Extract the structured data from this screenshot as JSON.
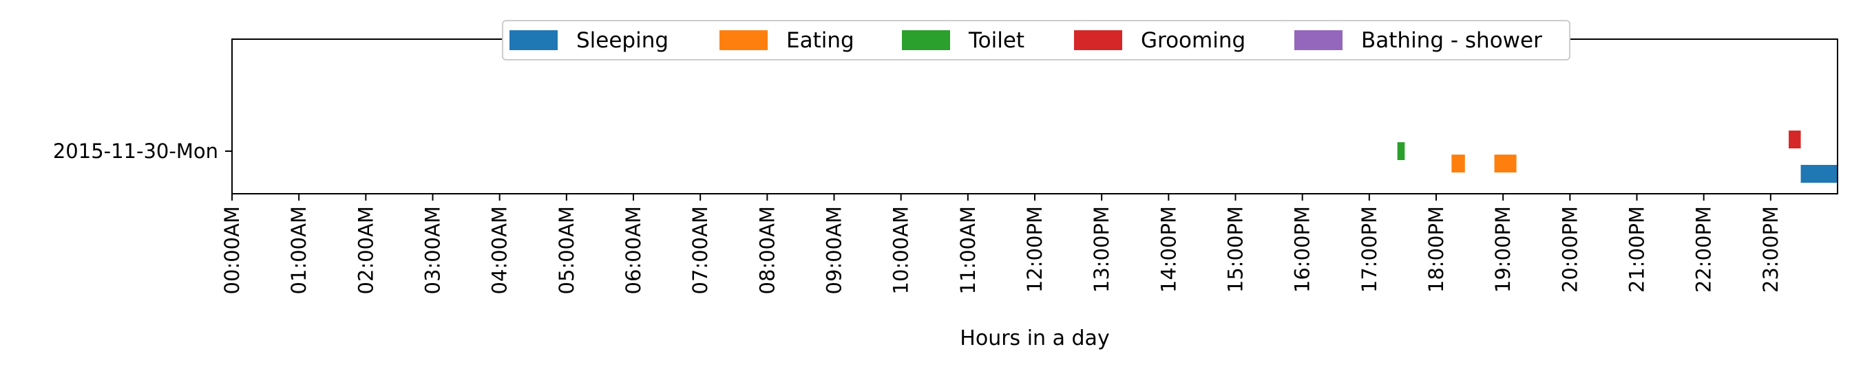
{
  "chart_data": {
    "type": "timeline",
    "xlabel": "Hours in a day",
    "xlim": [
      0,
      24
    ],
    "x_tick_labels": [
      "00:00AM",
      "01:00AM",
      "02:00AM",
      "03:00AM",
      "04:00AM",
      "05:00AM",
      "06:00AM",
      "07:00AM",
      "08:00AM",
      "09:00AM",
      "10:00AM",
      "11:00AM",
      "12:00PM",
      "13:00PM",
      "14:00PM",
      "15:00PM",
      "16:00PM",
      "17:00PM",
      "18:00PM",
      "19:00PM",
      "20:00PM",
      "21:00PM",
      "22:00PM",
      "23:00PM"
    ],
    "y_tick_labels": [
      "2015-11-30-Mon"
    ],
    "legend": {
      "placement": "top-center",
      "entries": [
        {
          "name": "Sleeping",
          "color": "#1f77b4"
        },
        {
          "name": "Eating",
          "color": "#ff7f0e"
        },
        {
          "name": "Toilet",
          "color": "#2ca02c"
        },
        {
          "name": "Grooming",
          "color": "#d62728"
        },
        {
          "name": "Bathing - shower",
          "color": "#9467bd"
        }
      ]
    },
    "series": [
      {
        "name": "Sleeping",
        "color": "#1f77b4",
        "segments": [
          [
            23.45,
            24.0
          ]
        ]
      },
      {
        "name": "Eating",
        "color": "#ff7f0e",
        "segments": [
          [
            18.23,
            18.43
          ],
          [
            18.87,
            19.2
          ]
        ]
      },
      {
        "name": "Toilet",
        "color": "#2ca02c",
        "segments": [
          [
            17.42,
            17.53
          ]
        ]
      },
      {
        "name": "Grooming",
        "color": "#d62728",
        "segments": [
          [
            23.27,
            23.45
          ]
        ]
      },
      {
        "name": "Bathing - shower",
        "color": "#9467bd",
        "segments": []
      }
    ]
  }
}
